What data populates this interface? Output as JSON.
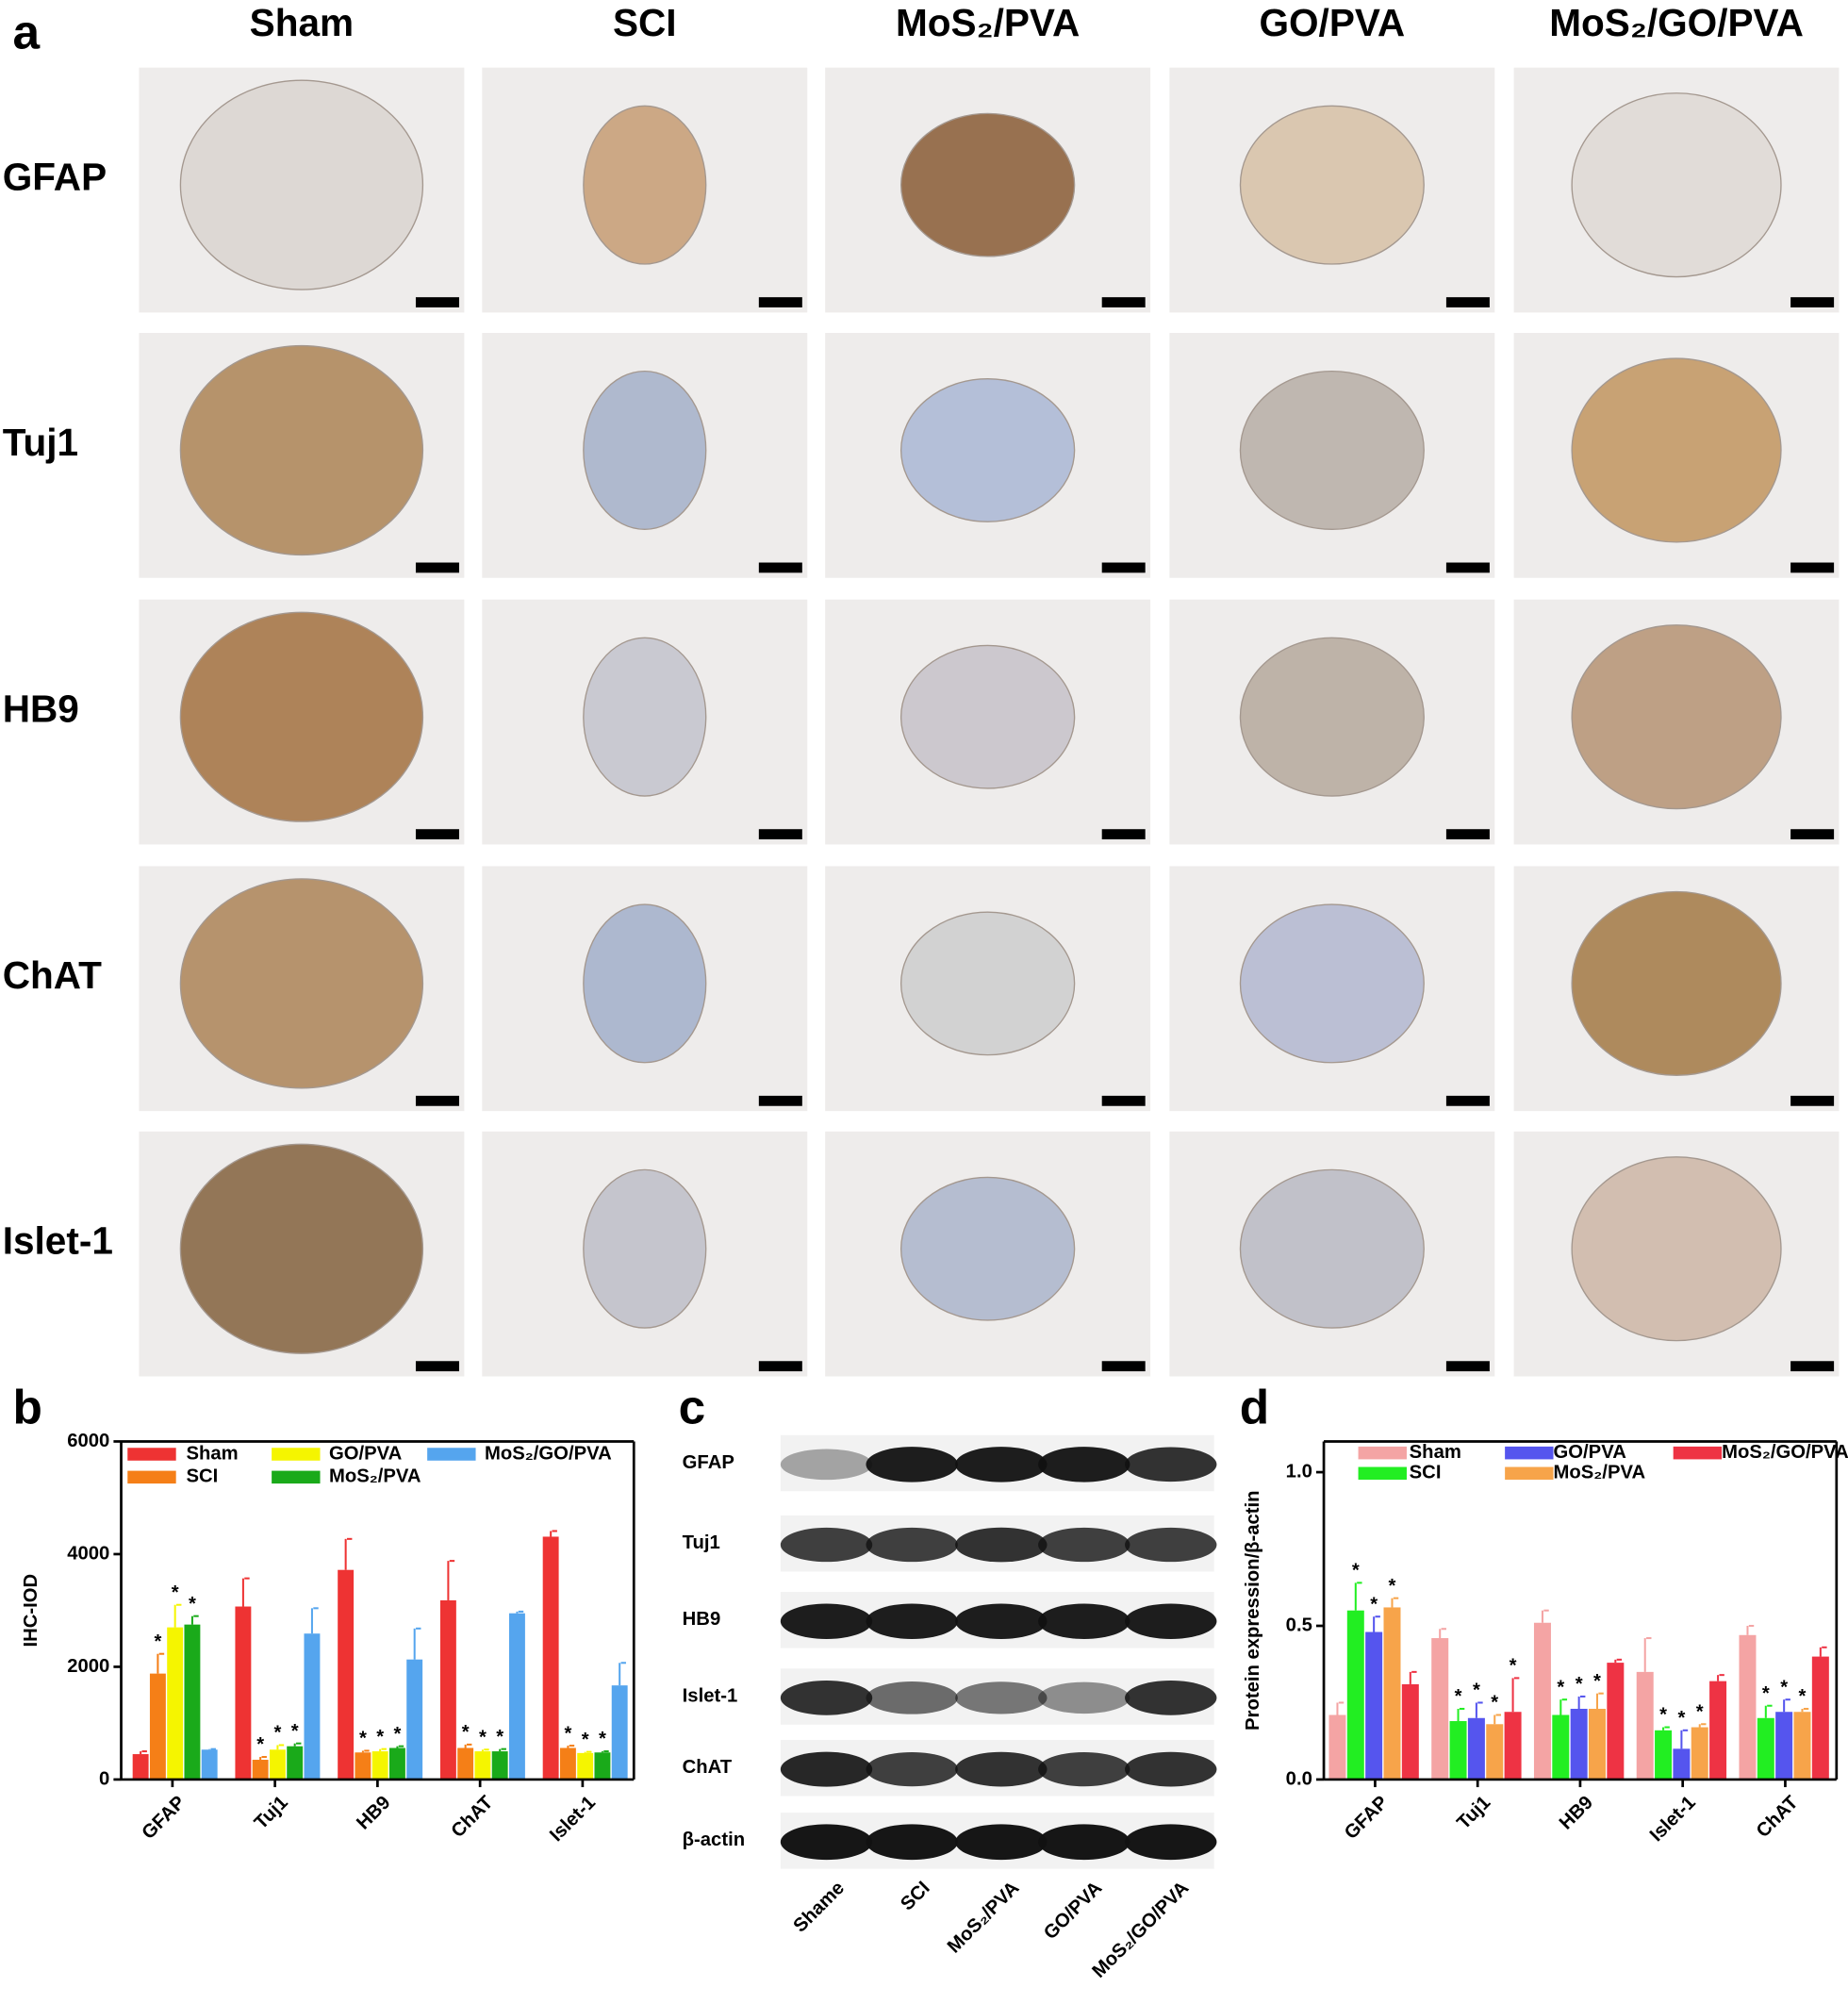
{
  "panel_labels": [
    "a",
    "b",
    "c",
    "d"
  ],
  "panel_a": {
    "columns": [
      "Sham",
      "SCI",
      "MoS₂/PVA",
      "GO/PVA",
      "MoS₂/GO/PVA"
    ],
    "rows": [
      "GFAP",
      "Tuj1",
      "HB9",
      "ChAT",
      "Islet-1"
    ]
  },
  "panel_c": {
    "rows": [
      "GFAP",
      "Tuj1",
      "HB9",
      "Islet-1",
      "ChAT",
      "β-actin"
    ],
    "lanes": [
      "Shame",
      "SCI",
      "MoS₂/PVA",
      "GO/PVA",
      "MoS₂/GO/PVA"
    ]
  },
  "chart_data": [
    {
      "type": "bar",
      "ylabel": "IHC-IOD",
      "categories": [
        "GFAP",
        "Tuj1",
        "HB9",
        "ChAT",
        "Islet-1"
      ],
      "ylim": [
        0,
        6000
      ],
      "yticks": [
        0,
        2000,
        4000,
        6000
      ],
      "significance_marker": "*",
      "series": [
        {
          "name": "Sham",
          "color": "#ee3333",
          "values": [
            450,
            3070,
            3720,
            3180,
            4310
          ],
          "errors": [
            50,
            500,
            550,
            700,
            100
          ],
          "significant": [
            false,
            false,
            false,
            false,
            false
          ]
        },
        {
          "name": "SCI",
          "color": "#f57f17",
          "values": [
            1880,
            350,
            480,
            560,
            560
          ],
          "errors": [
            350,
            50,
            30,
            60,
            40
          ],
          "significant": [
            true,
            true,
            true,
            true,
            true
          ]
        },
        {
          "name": "GO/PVA",
          "color": "#f5f500",
          "values": [
            2700,
            530,
            500,
            500,
            470
          ],
          "errors": [
            400,
            80,
            40,
            30,
            20
          ],
          "significant": [
            true,
            true,
            true,
            true,
            true
          ]
        },
        {
          "name": "MoS₂/PVA",
          "color": "#1aaa1a",
          "values": [
            2750,
            590,
            560,
            500,
            480
          ],
          "errors": [
            150,
            50,
            30,
            40,
            20
          ],
          "significant": [
            true,
            true,
            true,
            true,
            true
          ]
        },
        {
          "name": "MoS₂/GO/PVA",
          "color": "#55a5ee",
          "values": [
            530,
            2590,
            2130,
            2950,
            1670
          ],
          "errors": [
            10,
            450,
            550,
            30,
            400
          ],
          "significant": [
            false,
            false,
            false,
            false,
            false
          ]
        }
      ]
    },
    {
      "type": "bar",
      "ylabel": "Protein expression/β-actin",
      "categories": [
        "GFAP",
        "Tuj1",
        "HB9",
        "Islet-1",
        "ChAT"
      ],
      "ylim": [
        0,
        1.1
      ],
      "yticks": [
        {
          "value": 0,
          "label": "0.0"
        },
        {
          "value": 0.5,
          "label": "0.5"
        },
        {
          "value": 1,
          "label": "1.0"
        }
      ],
      "significance_marker": "*",
      "series": [
        {
          "name": "Sham",
          "color": "#f4a4a4",
          "values": [
            0.21,
            0.46,
            0.51,
            0.35,
            0.47
          ],
          "errors": [
            0.04,
            0.03,
            0.04,
            0.11,
            0.03
          ],
          "significant": [
            false,
            false,
            false,
            false,
            false
          ]
        },
        {
          "name": "SCI",
          "color": "#22ee22",
          "values": [
            0.55,
            0.19,
            0.21,
            0.16,
            0.2
          ],
          "errors": [
            0.09,
            0.04,
            0.05,
            0.01,
            0.04
          ],
          "significant": [
            true,
            true,
            true,
            true,
            true
          ]
        },
        {
          "name": "GO/PVA",
          "color": "#5555ee",
          "values": [
            0.48,
            0.2,
            0.23,
            0.1,
            0.22
          ],
          "errors": [
            0.05,
            0.05,
            0.04,
            0.06,
            0.04
          ],
          "significant": [
            true,
            true,
            true,
            true,
            true
          ]
        },
        {
          "name": "MoS₂/PVA",
          "color": "#f7a44a",
          "values": [
            0.56,
            0.18,
            0.23,
            0.17,
            0.22
          ],
          "errors": [
            0.03,
            0.03,
            0.05,
            0.01,
            0.01
          ],
          "significant": [
            true,
            true,
            true,
            true,
            true
          ]
        },
        {
          "name": "MoS₂/GO/PVA",
          "color": "#ee3344",
          "values": [
            0.31,
            0.22,
            0.38,
            0.32,
            0.4
          ],
          "errors": [
            0.04,
            0.11,
            0.01,
            0.02,
            0.03
          ],
          "significant": [
            false,
            true,
            false,
            false,
            false
          ]
        }
      ]
    }
  ]
}
